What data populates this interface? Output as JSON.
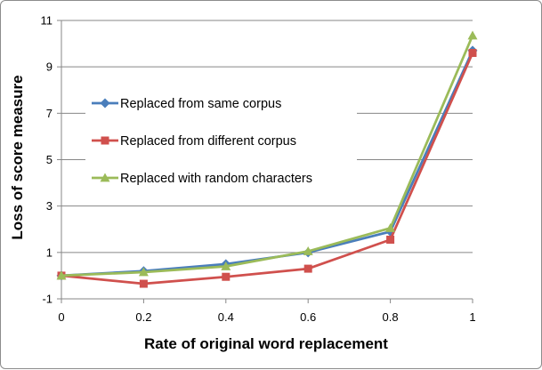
{
  "chart_data": {
    "type": "line",
    "xlabel": "Rate of original word replacement",
    "ylabel": "Loss of score measure",
    "x": [
      0,
      0.2,
      0.4,
      0.6,
      0.8,
      1
    ],
    "x_tick_labels": [
      "0",
      "0.2",
      "0.4",
      "0.6",
      "0.8",
      "1"
    ],
    "y_ticks": [
      -1,
      1,
      3,
      5,
      7,
      9,
      11
    ],
    "y_tick_labels": [
      "-1",
      "1",
      "3",
      "5",
      "7",
      "9",
      "11"
    ],
    "xlim": [
      0,
      1
    ],
    "ylim": [
      -1,
      11
    ],
    "grid": "horizontal",
    "legend_position": "inside-left",
    "series": [
      {
        "name": "Replaced from same corpus",
        "color": "#4a7ebb",
        "marker": "diamond",
        "values": [
          0,
          0.2,
          0.5,
          1.0,
          1.9,
          9.7
        ]
      },
      {
        "name": "Replaced from different corpus",
        "color": "#d0504d",
        "marker": "square",
        "values": [
          0,
          -0.35,
          -0.05,
          0.3,
          1.55,
          9.6
        ]
      },
      {
        "name": "Replaced with random characters",
        "color": "#9bbb59",
        "marker": "triangle",
        "values": [
          0,
          0.15,
          0.4,
          1.05,
          2.05,
          10.35
        ]
      }
    ]
  }
}
